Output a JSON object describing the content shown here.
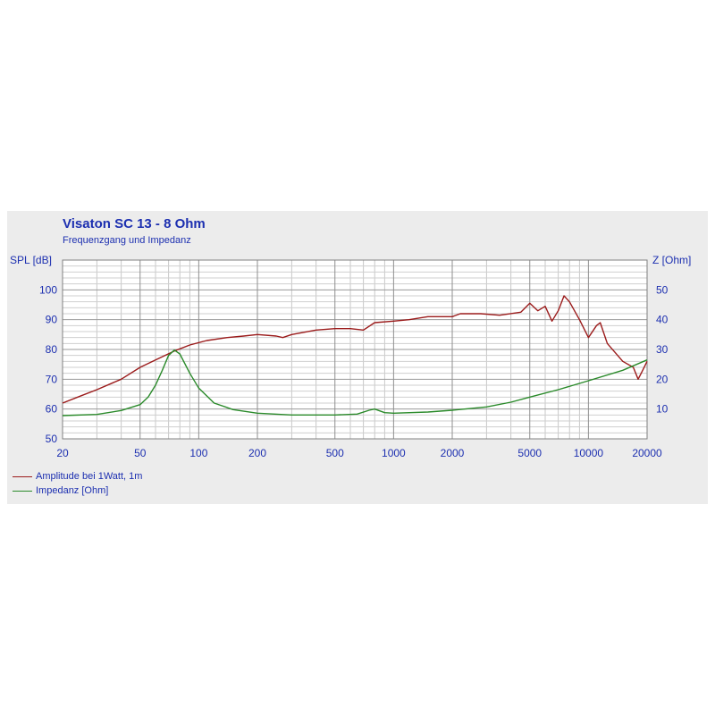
{
  "chart_data": {
    "type": "line",
    "title": "Visaton SC 13 - 8 Ohm",
    "subtitle": "Frequenzgang und Impedanz",
    "ylabel_left": "SPL [dB]",
    "ylabel_right": "Z [Ohm]",
    "x_scale": "log",
    "xlim": [
      20,
      20000
    ],
    "ylim_left": [
      50,
      110
    ],
    "ylim_right": [
      0,
      60
    ],
    "x_ticks": [
      20,
      50,
      100,
      200,
      500,
      1000,
      2000,
      5000,
      10000,
      20000
    ],
    "y_ticks_left": [
      50,
      60,
      70,
      80,
      90,
      100
    ],
    "y_ticks_right": [
      10,
      20,
      30,
      40,
      50
    ],
    "grid": true,
    "legend_position": "bottom-left",
    "series": [
      {
        "name": "Amplitude bei 1Watt, 1m",
        "axis": "left",
        "color": "#9b1b1b",
        "points": [
          [
            20,
            62
          ],
          [
            25,
            64.5
          ],
          [
            30,
            66.5
          ],
          [
            40,
            70
          ],
          [
            50,
            74
          ],
          [
            60,
            76.5
          ],
          [
            75,
            79.5
          ],
          [
            90,
            81.5
          ],
          [
            110,
            83
          ],
          [
            140,
            84
          ],
          [
            170,
            84.5
          ],
          [
            200,
            85
          ],
          [
            250,
            84.5
          ],
          [
            270,
            84
          ],
          [
            300,
            85
          ],
          [
            400,
            86.5
          ],
          [
            500,
            87
          ],
          [
            600,
            87
          ],
          [
            700,
            86.5
          ],
          [
            800,
            89
          ],
          [
            1000,
            89.5
          ],
          [
            1200,
            90
          ],
          [
            1500,
            91
          ],
          [
            2000,
            91
          ],
          [
            2200,
            92
          ],
          [
            2800,
            92
          ],
          [
            3500,
            91.5
          ],
          [
            4500,
            92.5
          ],
          [
            5000,
            95.5
          ],
          [
            5500,
            93
          ],
          [
            6000,
            94.5
          ],
          [
            6500,
            89.5
          ],
          [
            7000,
            93
          ],
          [
            7500,
            98
          ],
          [
            8000,
            96
          ],
          [
            9000,
            90
          ],
          [
            10000,
            84
          ],
          [
            11000,
            88
          ],
          [
            11500,
            89
          ],
          [
            12500,
            82
          ],
          [
            15000,
            76
          ],
          [
            17000,
            74
          ],
          [
            18000,
            70
          ],
          [
            19000,
            73
          ],
          [
            20000,
            76
          ]
        ]
      },
      {
        "name": "Impedanz [Ohm]",
        "axis": "right",
        "color": "#2a8a2a",
        "points": [
          [
            20,
            7.8
          ],
          [
            30,
            8.2
          ],
          [
            40,
            9.5
          ],
          [
            50,
            11.5
          ],
          [
            55,
            14
          ],
          [
            60,
            18
          ],
          [
            65,
            23
          ],
          [
            70,
            28
          ],
          [
            75,
            29.8
          ],
          [
            80,
            28.5
          ],
          [
            90,
            22
          ],
          [
            100,
            17
          ],
          [
            120,
            12
          ],
          [
            150,
            9.8
          ],
          [
            200,
            8.6
          ],
          [
            300,
            8.0
          ],
          [
            500,
            8.0
          ],
          [
            650,
            8.3
          ],
          [
            750,
            9.6
          ],
          [
            800,
            10
          ],
          [
            900,
            8.8
          ],
          [
            1000,
            8.6
          ],
          [
            1500,
            9.0
          ],
          [
            2000,
            9.6
          ],
          [
            3000,
            10.7
          ],
          [
            4000,
            12.3
          ],
          [
            5000,
            14
          ],
          [
            7000,
            16.5
          ],
          [
            10000,
            19.5
          ],
          [
            15000,
            23
          ],
          [
            20000,
            26.5
          ]
        ]
      }
    ]
  }
}
